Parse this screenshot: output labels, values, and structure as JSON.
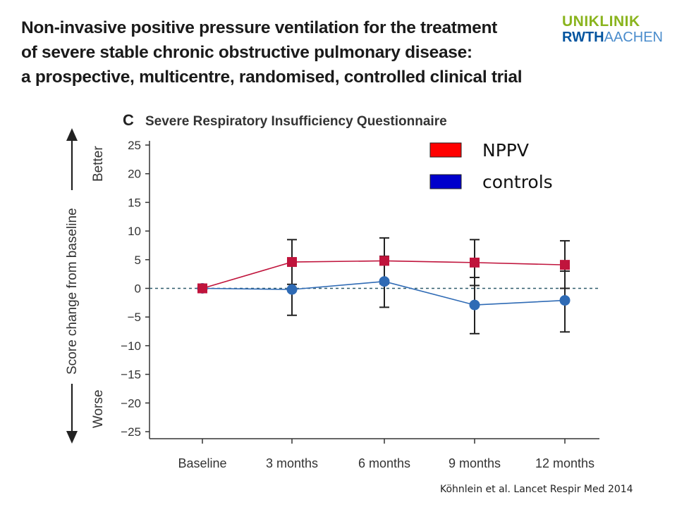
{
  "slide": {
    "title_lines": [
      "Non-invasive positive pressure ventilation for the treatment",
      "of severe stable chronic obstructive pulmonary disease:",
      "a prospective, multicentre, randomised, controlled clinical trial"
    ],
    "logo": {
      "line1": "UNIKLINIK",
      "line2_bold": "RWTH",
      "line2_light": "AACHEN"
    },
    "citation": "Köhnlein et al. Lancet Respir Med 2014"
  },
  "chart_data": {
    "type": "line",
    "panel_letter": "C",
    "title": "Severe Respiratory Insufficiency Questionnaire",
    "ylabel": "Score change from baseline",
    "y_better_label": "Better",
    "y_worse_label": "Worse",
    "categories": [
      "Baseline",
      "3 months",
      "6 months",
      "9 months",
      "12 months"
    ],
    "ylim": [
      -25,
      25
    ],
    "yticks": [
      25,
      20,
      15,
      10,
      5,
      0,
      -5,
      -10,
      -15,
      -20,
      -25
    ],
    "ytick_labels": [
      "25",
      "20",
      "15",
      "10",
      "5",
      "0",
      "−5",
      "−10",
      "−15",
      "−20",
      "−25"
    ],
    "reference_line": 0,
    "legend_position": "top-right",
    "series": [
      {
        "name": "NPPV",
        "color": "#c0143c",
        "legend_color": "#ff0000",
        "marker": "square",
        "values": [
          0,
          4.6,
          4.8,
          4.5,
          4.1
        ],
        "error_low": [
          null,
          0.7,
          0.8,
          0.5,
          0.0
        ],
        "error_high": [
          null,
          8.5,
          8.8,
          8.5,
          8.3
        ]
      },
      {
        "name": "controls",
        "color": "#2f6bb5",
        "legend_color": "#0000cc",
        "marker": "circle",
        "values": [
          0,
          -0.2,
          1.2,
          -2.9,
          -2.1
        ],
        "error_low": [
          null,
          -4.7,
          -3.3,
          -7.9,
          -7.6
        ],
        "error_high": [
          null,
          4.0,
          5.6,
          1.9,
          3.0
        ]
      }
    ]
  }
}
